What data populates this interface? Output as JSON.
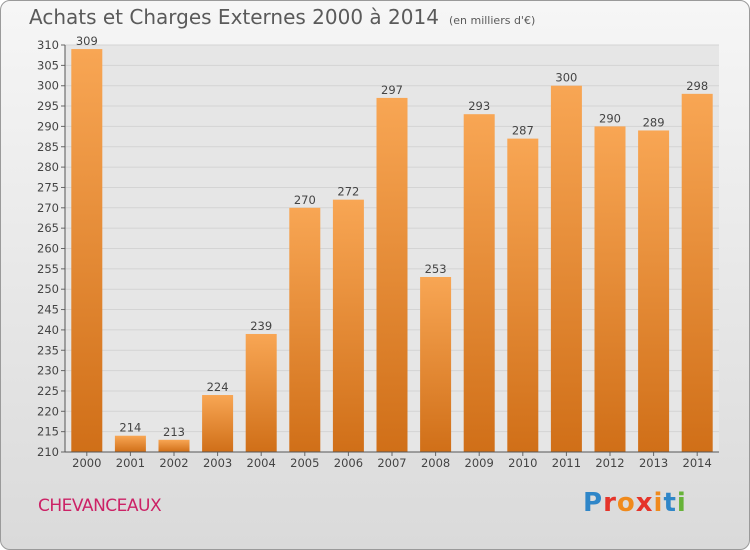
{
  "title": "Achats et Charges Externes 2000 à 2014",
  "title_unit": "(en milliers d'€)",
  "commune": "CHEVANCEAUX",
  "logo": {
    "text": "Proxiti",
    "brand_colors": [
      "#2f86c8",
      "#f08a1c",
      "#e5342a",
      "#67b338"
    ]
  },
  "colors": {
    "bar_light": "#f8a654",
    "bar_dark": "#d06f18",
    "grid": "#d4d4d4",
    "plot_bg": "#e6e6e6",
    "text": "#444444"
  },
  "chart_data": {
    "type": "bar",
    "categories": [
      "2000",
      "2001",
      "2002",
      "2003",
      "2004",
      "2005",
      "2006",
      "2007",
      "2008",
      "2009",
      "2010",
      "2011",
      "2012",
      "2013",
      "2014"
    ],
    "values": [
      309,
      214,
      213,
      224,
      239,
      270,
      272,
      297,
      253,
      293,
      287,
      300,
      290,
      289,
      298
    ],
    "ylim": [
      210,
      310
    ],
    "yticks": [
      210,
      215,
      220,
      225,
      230,
      235,
      240,
      245,
      250,
      255,
      260,
      265,
      270,
      275,
      280,
      285,
      290,
      295,
      300,
      305,
      310
    ],
    "grid": true,
    "xlabel": "",
    "ylabel": ""
  }
}
